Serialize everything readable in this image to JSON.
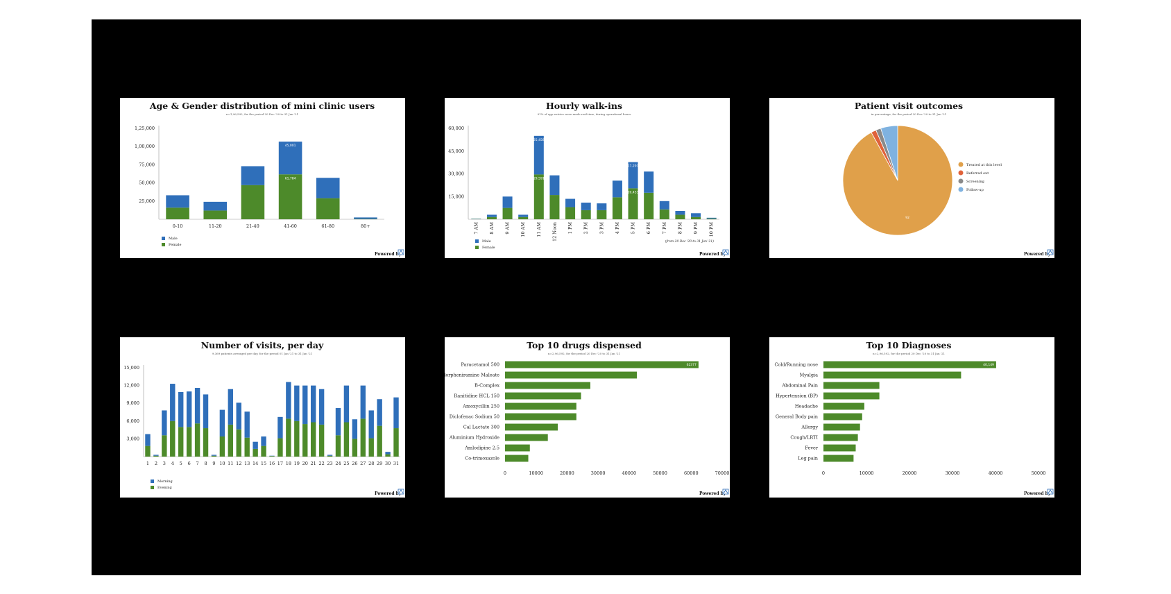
{
  "colors": {
    "blue": "#2f6fba",
    "green": "#4d8a2a",
    "orange": "#e0a04a",
    "red": "#e0623a",
    "gray": "#8a8a8a",
    "lightblue": "#7fb2e0"
  },
  "footer": {
    "powered_by": "Powered by",
    "logo_icon": "powered-by-logo-icon"
  },
  "chart_data": [
    {
      "type": "bar",
      "stacked": true,
      "title": "Age & Gender distribution of mini clinic users",
      "subtitle": "n=1,96,592, for the period 20 Dec '20 to 31 Jan '21",
      "categories": [
        "0-10",
        "11-20",
        "21-40",
        "41-60",
        "61-80",
        "80+"
      ],
      "series": [
        {
          "name": "Female",
          "color": "#4d8a2a",
          "values": [
            16000,
            12000,
            47000,
            61784,
            29000,
            500
          ]
        },
        {
          "name": "Male",
          "color": "#2f6fba",
          "values": [
            17000,
            12000,
            26000,
            45001,
            28000,
            2000
          ]
        }
      ],
      "data_labels": [
        {
          "category": "41-60",
          "series": "Male",
          "text": "45,001"
        },
        {
          "category": "41-60",
          "series": "Female",
          "text": "61,784"
        }
      ],
      "ylim": [
        0,
        125000
      ],
      "yticks": [
        25000,
        50000,
        75000,
        100000,
        125000
      ],
      "ytick_labels": [
        "25,000",
        "50,000",
        "75,000",
        "1,00,000",
        "1,25,000"
      ],
      "legend": [
        "Male",
        "Female"
      ],
      "legend_position": "bottom-left"
    },
    {
      "type": "bar",
      "stacked": true,
      "title": "Hourly walk-ins",
      "subtitle": "91% of app entries were made real-time, during operational hours",
      "categories": [
        "7 AM",
        "8 AM",
        "9 AM",
        "10 AM",
        "11 AM",
        "12 Noon",
        "1 PM",
        "2 PM",
        "3 PM",
        "4 PM",
        "5 PM",
        "6 PM",
        "7 PM",
        "8 PM",
        "9 PM",
        "10 PM"
      ],
      "series": [
        {
          "name": "Female",
          "color": "#4d8a2a",
          "values": [
            200,
            1500,
            7500,
            1500,
            29591,
            16000,
            8000,
            6000,
            6000,
            14500,
            20453,
            17500,
            6500,
            3000,
            1500,
            500
          ]
        },
        {
          "name": "Male",
          "color": "#2f6fba",
          "values": [
            200,
            1500,
            7500,
            1500,
            25458,
            13000,
            5500,
            5000,
            4500,
            11000,
            17297,
            14000,
            5500,
            2500,
            2500,
            500
          ]
        }
      ],
      "data_labels": [
        {
          "category": "11 AM",
          "series": "Male",
          "text": "25,458"
        },
        {
          "category": "11 AM",
          "series": "Female",
          "text": "29,591"
        },
        {
          "category": "5 PM",
          "series": "Male",
          "text": "17,297"
        },
        {
          "category": "5 PM",
          "series": "Female",
          "text": "20,453"
        }
      ],
      "ylim": [
        0,
        60000
      ],
      "yticks": [
        15000,
        30000,
        45000,
        60000
      ],
      "ytick_labels": [
        "15,000",
        "30,000",
        "45,000",
        "60,000"
      ],
      "legend": [
        "Male",
        "Female"
      ],
      "legend_position": "bottom-left",
      "note": "(from 20 Dec '20 to 31 Jan '21)"
    },
    {
      "type": "pie",
      "title": "Patient visit outcomes",
      "subtitle": "in percentage, for the period 20 Dec '20 to 31 Jan '21",
      "slices": [
        {
          "label": "Treated at this level",
          "value": 92,
          "color": "#e0a04a"
        },
        {
          "label": "Referred out",
          "value": 1.5,
          "color": "#e0623a"
        },
        {
          "label": "Screening",
          "value": 1.5,
          "color": "#8a8a8a"
        },
        {
          "label": "Follow-up",
          "value": 5,
          "color": "#7fb2e0"
        }
      ],
      "slice_label": "92",
      "legend_position": "right"
    },
    {
      "type": "bar",
      "stacked": true,
      "title": "Number of visits, per day",
      "subtitle": "9,369 patients averaged per day, for the period 01 Jan '21 to 31 Jan '21",
      "categories": [
        "1",
        "2",
        "3",
        "4",
        "5",
        "6",
        "7",
        "8",
        "9",
        "10",
        "11",
        "12",
        "13",
        "14",
        "15",
        "16",
        "17",
        "18",
        "19",
        "20",
        "21",
        "22",
        "23",
        "24",
        "25",
        "26",
        "27",
        "28",
        "29",
        "30",
        "31"
      ],
      "series": [
        {
          "name": "Evening",
          "color": "#4d8a2a",
          "values": [
            1800,
            150,
            3600,
            6000,
            5000,
            5000,
            5600,
            4800,
            150,
            3400,
            5400,
            4600,
            3200,
            1300,
            1800,
            100,
            3100,
            6400,
            6000,
            5500,
            5800,
            5400,
            150,
            3600,
            5800,
            3000,
            6400,
            3100,
            5200,
            400,
            4800
          ]
        },
        {
          "name": "Morning",
          "color": "#2f6fba",
          "values": [
            2000,
            150,
            4200,
            6300,
            5900,
            6000,
            6000,
            5700,
            150,
            4500,
            6000,
            4500,
            4400,
            1200,
            1600,
            50,
            3600,
            6200,
            6000,
            6500,
            6200,
            6000,
            150,
            4600,
            6200,
            3300,
            5600,
            4700,
            4500,
            400,
            5200
          ]
        }
      ],
      "ylim": [
        0,
        15000
      ],
      "yticks": [
        3000,
        6000,
        9000,
        12000,
        15000
      ],
      "ytick_labels": [
        "3,000",
        "6,000",
        "9,000",
        "12,000",
        "15,000"
      ],
      "legend": [
        "Morning",
        "Evening"
      ],
      "legend_position": "bottom-left"
    },
    {
      "type": "bar",
      "orientation": "horizontal",
      "title": "Top 10 drugs dispensed",
      "subtitle": "n=2,96,592, for the period 20 Dec '20 to 31 Jan '21",
      "categories": [
        "Paracetamol 500",
        "Chlorpheniramine Maleate",
        "B-Complex",
        "Ranitidine HCL 150",
        "Amoxycillin 250",
        "Diclofenac Sodium 50",
        "Cal Lactate 300",
        "Aluminium Hydroxide",
        "Amlodipine 2.5",
        "Co-trimoxazole"
      ],
      "values": [
        62377,
        42500,
        27500,
        24500,
        23000,
        23000,
        17000,
        13800,
        8000,
        7500
      ],
      "color": "#4d8a2a",
      "data_label": "62377",
      "xlim": [
        0,
        70000
      ],
      "xticks": [
        0,
        10000,
        20000,
        30000,
        40000,
        50000,
        60000,
        70000
      ],
      "xtick_labels": [
        "0",
        "10000",
        "20000",
        "30000",
        "40000",
        "50000",
        "60000",
        "70000"
      ]
    },
    {
      "type": "bar",
      "orientation": "horizontal",
      "title": "Top 10 Diagnoses",
      "subtitle": "n=2,96,592, for the period 20 Dec '20 to 31 Jan '21",
      "categories": [
        "Cold/Running nose",
        "Myalgia",
        "Abdominal Pain",
        "Hypertension (BP)",
        "Headache",
        "General Body pain",
        "Allergy",
        "Cough/LRTI",
        "Fever",
        "Leg pain"
      ],
      "values": [
        40149,
        32000,
        13000,
        13000,
        9500,
        9000,
        8500,
        8000,
        7500,
        7000
      ],
      "color": "#4d8a2a",
      "data_label": "40,149",
      "xlim": [
        0,
        50000
      ],
      "xticks": [
        0,
        10000,
        20000,
        30000,
        40000,
        50000
      ],
      "xtick_labels": [
        "0",
        "10000",
        "20000",
        "30000",
        "40000",
        "50000"
      ]
    }
  ]
}
